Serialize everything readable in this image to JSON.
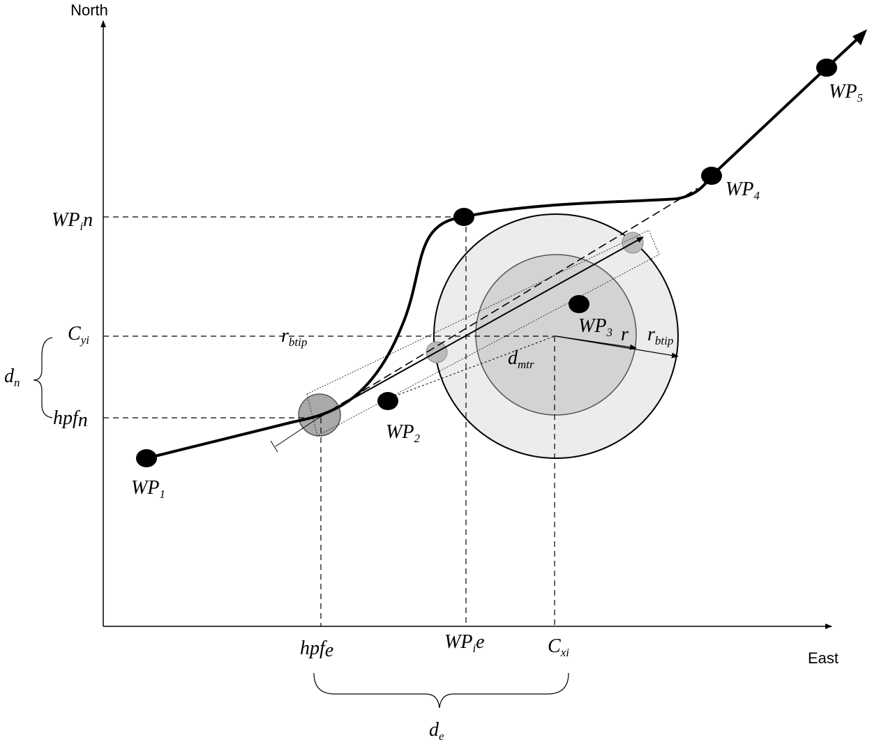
{
  "axes": {
    "north": "North",
    "east": "East"
  },
  "waypoints": [
    {
      "base": "WP",
      "sub": "1"
    },
    {
      "base": "WP",
      "sub": "2"
    },
    {
      "base": "WP",
      "sub": "3"
    },
    {
      "base": "WP",
      "sub": "4"
    },
    {
      "base": "WP",
      "sub": "5"
    }
  ],
  "north_labels": [
    {
      "base": "WP",
      "sub": "i",
      "tail": "n"
    },
    {
      "base": "C",
      "sub": "yi"
    },
    {
      "base": "hpf",
      "sub": "n"
    }
  ],
  "east_labels": [
    {
      "base": "hpf",
      "sub": "e"
    },
    {
      "base": "WP",
      "sub": "i",
      "tail": "e"
    },
    {
      "base": "C",
      "sub": "xi"
    }
  ],
  "distances": {
    "north": {
      "base": "d",
      "sub": "n"
    },
    "east": {
      "base": "d",
      "sub": "e"
    }
  },
  "radii": {
    "btip_left": {
      "base": "r",
      "sub": "btip"
    },
    "mtr": {
      "base": "d",
      "sub": "mtr"
    },
    "r": {
      "base": "r"
    },
    "btip_right": {
      "base": "r",
      "sub": "btip"
    }
  }
}
